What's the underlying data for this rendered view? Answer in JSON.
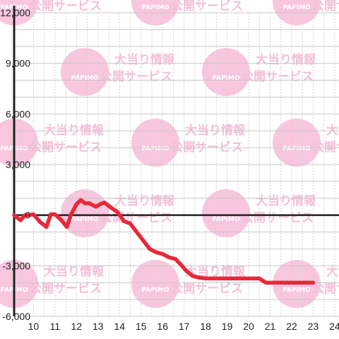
{
  "watermark": {
    "logo_text": "PAPIMO",
    "line1": "大当り情報",
    "line2": "公開サービス"
  },
  "chart_data": {
    "type": "line",
    "title": "",
    "xlabel": "",
    "ylabel": "",
    "xlim": [
      9.1,
      24.2
    ],
    "ylim": [
      -6000,
      12000
    ],
    "x_ticks": [
      10,
      11,
      12,
      13,
      14,
      15,
      16,
      17,
      18,
      19,
      20,
      21,
      22,
      23,
      24
    ],
    "x_tick_labels": [
      "10",
      "11",
      "12",
      "13",
      "14",
      "15",
      "16",
      "17",
      "18",
      "19",
      "20",
      "21",
      "22",
      "23",
      "24"
    ],
    "y_ticks": [
      -6000,
      -3000,
      0,
      3000,
      6000,
      9000,
      12000
    ],
    "y_tick_labels": [
      "-6,000",
      "-3,000",
      "0",
      "3,000",
      "6,000",
      "9,000",
      "12,000"
    ],
    "grid": true,
    "line_color": "#e8283a",
    "series": [
      {
        "x": [
          9.1,
          9.4,
          9.6,
          9.75,
          10.0,
          10.3,
          10.6,
          10.8,
          11.0,
          11.3,
          11.55,
          11.75,
          12.0,
          12.2,
          12.4,
          12.6,
          12.9,
          13.1,
          13.3,
          13.6,
          13.9,
          14.2,
          14.5,
          14.8,
          15.1,
          15.4,
          15.7,
          16.0,
          16.3,
          16.6,
          16.9,
          17.1,
          17.4,
          17.7,
          18.0,
          18.3,
          18.6,
          19.0,
          19.5,
          20.0,
          20.5,
          20.8,
          21.0,
          21.3,
          21.6,
          22.0,
          22.5,
          23.0
        ],
        "y": [
          0,
          -300,
          0,
          0,
          50,
          -400,
          -700,
          50,
          50,
          -300,
          -700,
          50,
          650,
          900,
          700,
          700,
          500,
          650,
          750,
          450,
          200,
          -350,
          -500,
          -1000,
          -1500,
          -2000,
          -2200,
          -2300,
          -2500,
          -2600,
          -3000,
          -3300,
          -3600,
          -3700,
          -3750,
          -3750,
          -3750,
          -3750,
          -3750,
          -3750,
          -3750,
          -4000,
          -4000,
          -4000,
          -4000,
          -4000,
          -4000,
          -4000
        ]
      }
    ]
  }
}
